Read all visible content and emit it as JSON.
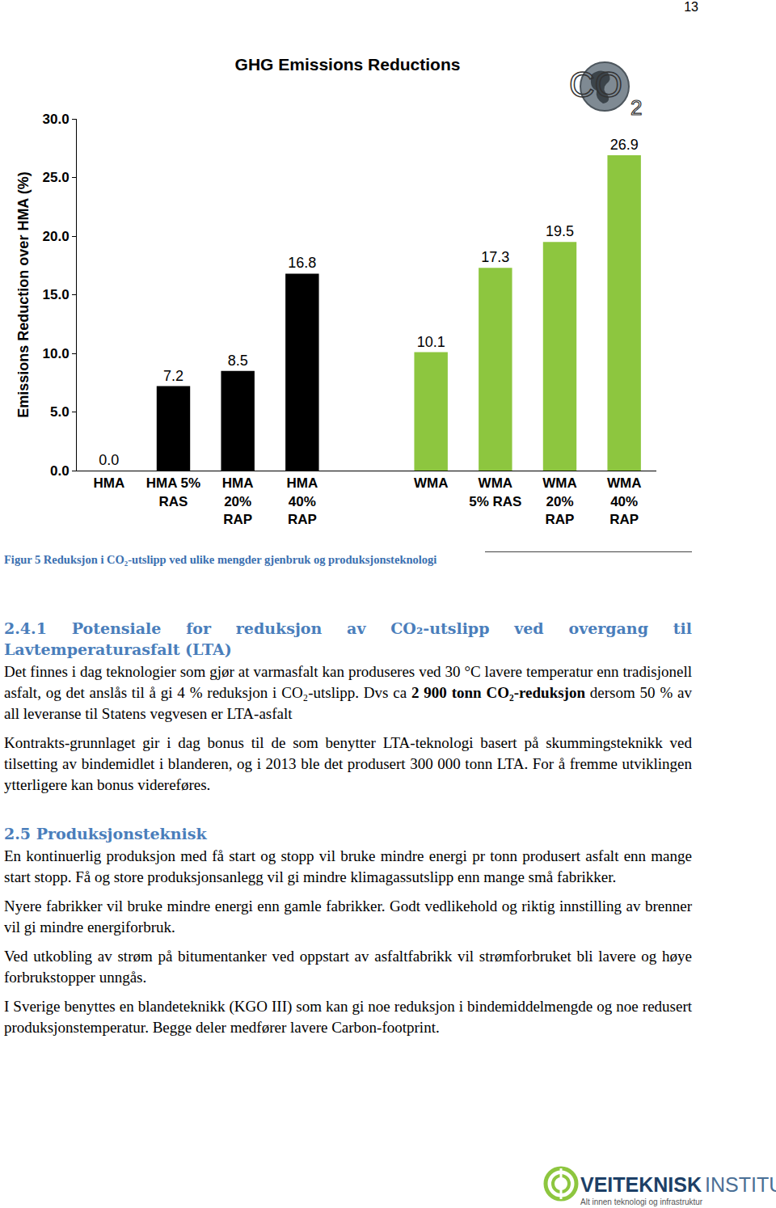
{
  "page_number": "13",
  "chart_data": {
    "type": "bar",
    "title": "GHG Emissions Reductions",
    "y_label": "Emissions Reduction over HMA (%)",
    "categories": [
      "HMA",
      "HMA 5%\nRAS",
      "HMA\n20%\nRAP",
      "HMA\n40%\nRAP",
      null,
      "WMA",
      "WMA\n5% RAS",
      "WMA\n20%\nRAP",
      "WMA\n40%\nRAP"
    ],
    "values": [
      0,
      7.2,
      8.5,
      16.8,
      null,
      10.1,
      17.3,
      19.5,
      26.9
    ],
    "value_labels": [
      "0.0",
      "7.2",
      "8.5",
      "16.8",
      null,
      "10.1",
      "17.3",
      "19.5",
      "26.9"
    ],
    "colors": [
      "#000000",
      "#000000",
      "#000000",
      "#000000",
      null,
      "#8dc63f",
      "#8dc63f",
      "#8dc63f",
      "#8dc63f"
    ],
    "ylim": [
      0,
      30
    ],
    "yticks": [
      {
        "value": 0,
        "label": "0.0"
      },
      {
        "value": 5,
        "label": "5.0"
      },
      {
        "value": 10,
        "label": "10.0"
      },
      {
        "value": 15,
        "label": "15.0"
      },
      {
        "value": 20,
        "label": "20.0"
      },
      {
        "value": 25,
        "label": "25.0"
      },
      {
        "value": 30,
        "label": "30.0"
      }
    ],
    "grid": false,
    "data_labels": true
  },
  "logo": {
    "text": "CO",
    "subscript": "2"
  },
  "caption": "Figur 5 Reduksjon i CO₂-utslipp ved ulike mengder gjenbruk og produksjonsteknologi",
  "sections": [
    {
      "heading": "2.4.1 Potensiale for reduksjon av CO₂-utslipp ved overgang til Lavtemperaturasfalt (LTA)",
      "paragraphs": [
        [
          {
            "text": "Det finnes i dag teknologier som gjør at varmasfalt kan produseres ved 30 °C lavere temperatur enn tradisjonell asfalt, og det anslås til å gi 4 % reduksjon i CO₂-utslipp. Dvs ca ",
            "bold": false
          },
          {
            "text": "2 900 tonn CO₂-reduksjon",
            "bold": true
          },
          {
            "text": " dersom 50 % av all leveranse til Statens vegvesen er LTA-asfalt",
            "bold": false
          }
        ],
        [
          {
            "text": "Kontrakts-grunnlaget gir i dag bonus til de som benytter LTA-teknologi basert på skummingsteknikk ved tilsetting av bindemidlet i blanderen, og i 2013 ble det produsert 300 000 tonn LTA. For å fremme utviklingen ytterligere kan bonus videreføres.",
            "bold": false
          }
        ]
      ]
    },
    {
      "heading": "2.5 Produksjonsteknisk",
      "paragraphs": [
        [
          {
            "text": "En kontinuerlig produksjon med få start og stopp vil bruke mindre energi pr tonn produsert asfalt enn mange start stopp. Få og store produksjonsanlegg vil gi mindre klimagassutslipp enn mange små fabrikker.",
            "bold": false
          }
        ],
        [
          {
            "text": "Nyere fabrikker vil bruke mindre energi enn gamle fabrikker. Godt vedlikehold og riktig innstilling av brenner vil gi mindre energiforbruk.",
            "bold": false
          }
        ],
        [
          {
            "text": "Ved utkobling av strøm på bitumentanker ved oppstart av asfaltfabrikk vil strømforbruket bli lavere og høye forbrukstopper unngås.",
            "bold": false
          }
        ],
        [
          {
            "text": "I Sverige benyttes en blandeteknikk (KGO III) som kan gi noe reduksjon i bindemiddelmengde og noe redusert produksjonstemperatur. Begge deler medfører lavere Carbon-footprint.",
            "bold": false
          }
        ]
      ]
    }
  ],
  "footer": {
    "name_bold": "VEITEKNISK",
    "name_light": "INSTITUTT",
    "tagline": "Alt innen teknologi og infrastruktur"
  }
}
